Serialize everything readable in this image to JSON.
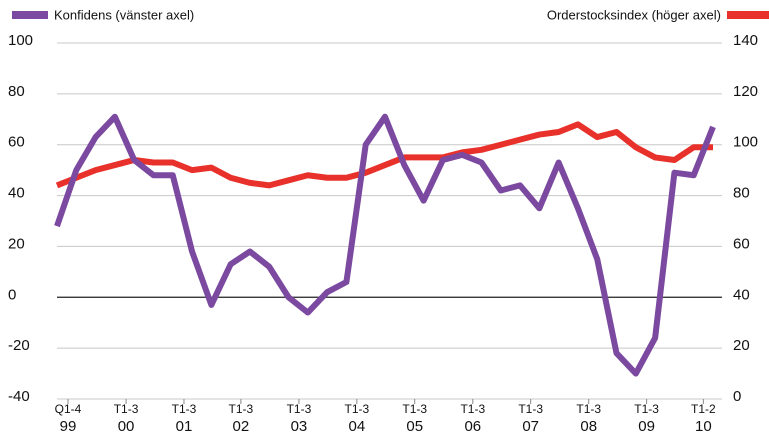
{
  "chart_data": {
    "type": "line",
    "x": [
      1,
      2,
      3,
      4,
      5,
      6,
      7,
      8,
      9,
      10,
      11,
      12,
      13,
      14,
      15,
      16,
      17,
      18,
      19,
      20,
      21,
      22,
      23,
      24,
      25,
      26,
      27,
      28,
      29,
      30,
      31,
      32,
      33,
      34,
      35
    ],
    "xlim": [
      1,
      35
    ],
    "xticks": [
      {
        "value": 1.57,
        "label": "Q1-4\n99"
      },
      {
        "value": 4.58,
        "label": "T1-3\n00"
      },
      {
        "value": 7.58,
        "label": "T1-3\n01"
      },
      {
        "value": 10.53,
        "label": "T1-3\n02"
      },
      {
        "value": 13.54,
        "label": "T1-3\n03"
      },
      {
        "value": 16.54,
        "label": "T1-3\n04"
      },
      {
        "value": 19.54,
        "label": "T1-3\n05"
      },
      {
        "value": 22.55,
        "label": "T1-3\n06"
      },
      {
        "value": 25.55,
        "label": "T1-3\n07"
      },
      {
        "value": 28.56,
        "label": "T1-3\n08"
      },
      {
        "value": 31.56,
        "label": "T1-3\n09"
      },
      {
        "value": 34.5,
        "label": "T1-2\n10"
      }
    ],
    "ylim": [
      -40,
      100
    ],
    "yticks": [
      -40,
      -20,
      0,
      20,
      40,
      60,
      80,
      100
    ],
    "y2lim": [
      0,
      140
    ],
    "y2ticks": [
      0,
      20,
      40,
      60,
      80,
      100,
      120,
      140
    ],
    "grid": true,
    "series": [
      {
        "name": "Konfidens (vänster axel)",
        "color": "#7b4aa0",
        "values": [
          28,
          50,
          63,
          71,
          54,
          48,
          48,
          18,
          -3,
          13,
          18,
          12,
          0,
          -6,
          2,
          6,
          60,
          71,
          52,
          38,
          54,
          56,
          53,
          42,
          44,
          35,
          53,
          35,
          15,
          -22,
          -30,
          -16,
          49,
          48,
          67
        ]
      },
      {
        "name": "Orderstocksindex (höger axel)",
        "color": "#e8312a",
        "axis": "y2",
        "values": [
          84,
          87,
          90,
          92,
          94,
          93,
          93,
          90,
          91,
          87,
          85,
          84,
          86,
          88,
          87,
          87,
          89,
          92,
          95,
          95,
          95,
          97,
          98,
          100,
          102,
          104,
          105,
          108,
          103,
          105,
          99,
          95,
          94,
          99,
          99
        ]
      }
    ]
  }
}
